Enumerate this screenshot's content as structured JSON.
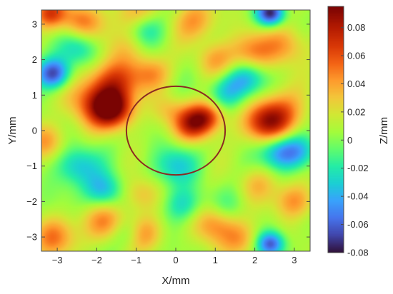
{
  "chart_data": {
    "type": "heatmap",
    "title": "",
    "xlabel": "X/mm",
    "ylabel": "Y/mm",
    "colorbar_label": "Z/mm",
    "xlim": [
      -3.4,
      3.4
    ],
    "ylim": [
      -3.4,
      3.4
    ],
    "x_ticks": [
      -3,
      -2,
      -1,
      0,
      1,
      2,
      3
    ],
    "x_tick_labels": [
      "−3",
      "−2",
      "−1",
      "0",
      "1",
      "2",
      "3"
    ],
    "y_ticks": [
      -3,
      -2,
      -1,
      0,
      1,
      2,
      3
    ],
    "y_tick_labels": [
      "−3",
      "−2",
      "−1",
      "0",
      "1",
      "2",
      "3"
    ],
    "clim": [
      -0.08,
      0.095
    ],
    "colorbar_ticks": [
      0.08,
      0.06,
      0.04,
      0.02,
      0,
      -0.02,
      -0.04,
      -0.06,
      -0.08
    ],
    "colorbar_tick_labels": [
      "0.08",
      "0.06",
      "0.04",
      "0.02",
      "0",
      "-0.02",
      "-0.04",
      "-0.06",
      "-0.08"
    ],
    "colormap": "turbo",
    "circle": {
      "center": [
        0,
        0
      ],
      "radius": 1.25,
      "color": "#8b2a22"
    },
    "features": [
      {
        "x": -1.6,
        "y": 0.6,
        "value": 0.085,
        "spread": 0.38
      },
      {
        "x": -1.6,
        "y": 1.4,
        "value": 0.055,
        "spread": 0.45
      },
      {
        "x": -2.2,
        "y": 0.8,
        "value": 0.04,
        "spread": 0.45
      },
      {
        "x": 0.45,
        "y": 0.2,
        "value": 0.07,
        "spread": 0.35
      },
      {
        "x": 0.85,
        "y": 0.4,
        "value": 0.045,
        "spread": 0.3
      },
      {
        "x": 2.3,
        "y": 0.2,
        "value": 0.06,
        "spread": 0.4
      },
      {
        "x": 2.7,
        "y": 0.5,
        "value": 0.04,
        "spread": 0.45
      },
      {
        "x": -3.2,
        "y": 3.3,
        "value": 0.055,
        "spread": 0.3
      },
      {
        "x": -2.4,
        "y": 3.1,
        "value": 0.045,
        "spread": 0.35
      },
      {
        "x": -1.0,
        "y": 3.2,
        "value": 0.04,
        "spread": 0.4
      },
      {
        "x": 0.5,
        "y": 3.1,
        "value": 0.035,
        "spread": 0.4
      },
      {
        "x": 1.9,
        "y": 2.2,
        "value": 0.04,
        "spread": 0.4
      },
      {
        "x": 2.8,
        "y": 2.4,
        "value": 0.035,
        "spread": 0.4
      },
      {
        "x": 1.0,
        "y": 2.0,
        "value": 0.03,
        "spread": 0.35
      },
      {
        "x": -0.6,
        "y": 1.6,
        "value": 0.035,
        "spread": 0.35
      },
      {
        "x": -3.3,
        "y": -0.3,
        "value": 0.035,
        "spread": 0.35
      },
      {
        "x": -3.1,
        "y": -3.0,
        "value": 0.04,
        "spread": 0.4
      },
      {
        "x": -1.8,
        "y": -2.6,
        "value": 0.04,
        "spread": 0.4
      },
      {
        "x": -0.8,
        "y": -2.9,
        "value": 0.035,
        "spread": 0.35
      },
      {
        "x": 1.0,
        "y": -2.6,
        "value": 0.045,
        "spread": 0.4
      },
      {
        "x": 1.7,
        "y": -3.1,
        "value": 0.03,
        "spread": 0.35
      },
      {
        "x": 3.0,
        "y": -2.0,
        "value": 0.04,
        "spread": 0.35
      },
      {
        "x": 2.1,
        "y": -1.5,
        "value": 0.025,
        "spread": 0.35
      },
      {
        "x": -0.9,
        "y": -1.8,
        "value": 0.03,
        "spread": 0.35
      },
      {
        "x": -3.1,
        "y": 1.6,
        "value": -0.075,
        "spread": 0.3
      },
      {
        "x": 2.4,
        "y": 3.3,
        "value": -0.08,
        "spread": 0.25
      },
      {
        "x": 2.4,
        "y": -3.2,
        "value": -0.07,
        "spread": 0.25
      },
      {
        "x": -0.8,
        "y": 2.9,
        "value": -0.045,
        "spread": 0.35
      },
      {
        "x": -2.5,
        "y": -1.0,
        "value": -0.04,
        "spread": 0.4
      },
      {
        "x": -1.8,
        "y": -1.7,
        "value": -0.045,
        "spread": 0.35
      },
      {
        "x": 0.0,
        "y": -1.0,
        "value": -0.035,
        "spread": 0.4
      },
      {
        "x": 1.8,
        "y": 1.5,
        "value": -0.04,
        "spread": 0.35
      },
      {
        "x": 1.3,
        "y": 1.1,
        "value": -0.035,
        "spread": 0.35
      },
      {
        "x": -2.4,
        "y": 2.3,
        "value": -0.035,
        "spread": 0.35
      },
      {
        "x": 2.6,
        "y": -0.6,
        "value": -0.045,
        "spread": 0.35
      },
      {
        "x": 3.1,
        "y": -0.6,
        "value": -0.04,
        "spread": 0.35
      },
      {
        "x": 0.2,
        "y": -2.1,
        "value": -0.035,
        "spread": 0.35
      },
      {
        "x": -1.2,
        "y": -2.9,
        "value": -0.025,
        "spread": 0.3
      },
      {
        "x": -0.2,
        "y": 0.6,
        "value": 0.02,
        "spread": 0.3
      },
      {
        "x": 1.3,
        "y": -2.2,
        "value": -0.02,
        "spread": 0.35
      },
      {
        "x": -1.3,
        "y": 2.4,
        "value": 0.02,
        "spread": 0.4
      }
    ]
  }
}
